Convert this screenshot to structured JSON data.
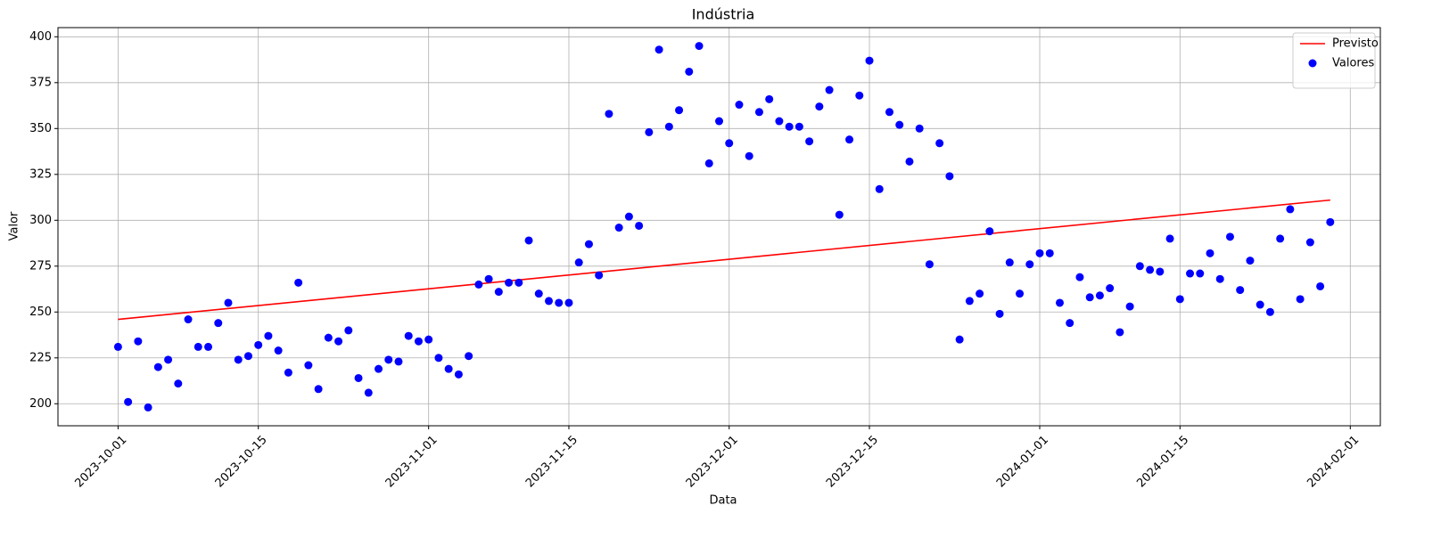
{
  "chart_data": {
    "type": "scatter",
    "title": "Indústria",
    "xlabel": "Data",
    "ylabel": "Valor",
    "xlim": [
      "2023-09-25",
      "2024-02-04"
    ],
    "xticks": [
      "2023-10-01",
      "2023-10-15",
      "2023-11-01",
      "2023-11-15",
      "2023-12-01",
      "2023-12-15",
      "2024-01-01",
      "2024-01-15",
      "2024-02-01"
    ],
    "ylim": [
      188,
      405
    ],
    "yticks": [
      200,
      225,
      250,
      275,
      300,
      325,
      350,
      375,
      400
    ],
    "grid": true,
    "legend": "upper right",
    "series": [
      {
        "name": "Previsto",
        "type": "line",
        "color": "#ff0000",
        "x": [
          "2023-10-01",
          "2024-01-30"
        ],
        "values": [
          246,
          311
        ]
      },
      {
        "name": "Valores",
        "type": "scatter",
        "color": "#0000ff",
        "x": [
          "2023-10-01",
          "2023-10-02",
          "2023-10-03",
          "2023-10-04",
          "2023-10-05",
          "2023-10-06",
          "2023-10-07",
          "2023-10-08",
          "2023-10-09",
          "2023-10-10",
          "2023-10-11",
          "2023-10-12",
          "2023-10-13",
          "2023-10-14",
          "2023-10-15",
          "2023-10-16",
          "2023-10-17",
          "2023-10-18",
          "2023-10-19",
          "2023-10-20",
          "2023-10-21",
          "2023-10-22",
          "2023-10-23",
          "2023-10-24",
          "2023-10-25",
          "2023-10-26",
          "2023-10-27",
          "2023-10-28",
          "2023-10-29",
          "2023-10-30",
          "2023-10-31",
          "2023-11-01",
          "2023-11-02",
          "2023-11-03",
          "2023-11-04",
          "2023-11-05",
          "2023-11-06",
          "2023-11-07",
          "2023-11-08",
          "2023-11-09",
          "2023-11-10",
          "2023-11-11",
          "2023-11-12",
          "2023-11-13",
          "2023-11-14",
          "2023-11-15",
          "2023-11-16",
          "2023-11-17",
          "2023-11-18",
          "2023-11-19",
          "2023-11-20",
          "2023-11-21",
          "2023-11-22",
          "2023-11-23",
          "2023-11-24",
          "2023-11-25",
          "2023-11-26",
          "2023-11-27",
          "2023-11-28",
          "2023-11-29",
          "2023-11-30",
          "2023-12-01",
          "2023-12-02",
          "2023-12-03",
          "2023-12-04",
          "2023-12-05",
          "2023-12-06",
          "2023-12-07",
          "2023-12-08",
          "2023-12-09",
          "2023-12-10",
          "2023-12-11",
          "2023-12-12",
          "2023-12-13",
          "2023-12-14",
          "2023-12-15",
          "2023-12-16",
          "2023-12-17",
          "2023-12-18",
          "2023-12-19",
          "2023-12-20",
          "2023-12-21",
          "2023-12-22",
          "2023-12-23",
          "2023-12-24",
          "2023-12-25",
          "2023-12-26",
          "2023-12-27",
          "2023-12-28",
          "2023-12-29",
          "2023-12-30",
          "2023-12-31",
          "2024-01-01",
          "2024-01-02",
          "2024-01-03",
          "2024-01-04",
          "2024-01-05",
          "2024-01-06",
          "2024-01-07",
          "2024-01-08",
          "2024-01-09",
          "2024-01-10",
          "2024-01-11",
          "2024-01-12",
          "2024-01-13",
          "2024-01-14",
          "2024-01-15",
          "2024-01-16",
          "2024-01-17",
          "2024-01-18",
          "2024-01-19",
          "2024-01-20",
          "2024-01-21",
          "2024-01-22",
          "2024-01-23",
          "2024-01-24",
          "2024-01-25",
          "2024-01-26",
          "2024-01-27",
          "2024-01-28",
          "2024-01-29",
          "2024-01-30"
        ],
        "values": [
          231,
          201,
          234,
          198,
          220,
          224,
          211,
          246,
          231,
          231,
          244,
          255,
          224,
          226,
          232,
          237,
          229,
          217,
          266,
          221,
          208,
          236,
          234,
          240,
          214,
          206,
          219,
          224,
          223,
          237,
          234,
          235,
          225,
          219,
          216,
          226,
          265,
          268,
          261,
          266,
          266,
          289,
          260,
          256,
          255,
          255,
          277,
          287,
          270,
          358,
          296,
          302,
          297,
          348,
          393,
          351,
          360,
          381,
          395,
          331,
          354,
          342,
          363,
          335,
          359,
          366,
          354,
          351,
          351,
          343,
          362,
          371,
          303,
          344,
          368,
          387,
          317,
          359,
          352,
          332,
          350,
          276,
          342,
          324,
          235,
          256,
          260,
          294,
          249,
          277,
          260,
          276,
          282,
          282,
          255,
          244,
          269,
          258,
          259,
          263,
          239,
          253,
          275,
          273,
          272,
          290,
          257,
          271,
          271,
          282,
          268,
          291,
          262,
          278,
          254,
          250,
          290,
          306,
          257,
          288,
          264,
          299
        ]
      }
    ]
  }
}
